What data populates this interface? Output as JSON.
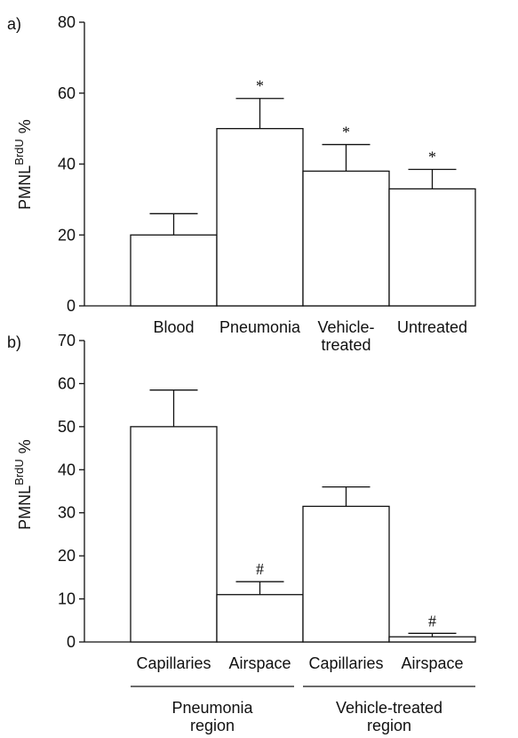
{
  "chart_data": [
    {
      "type": "bar",
      "panel": "a)",
      "ylabel": "PMNL",
      "ylabel_sup": "BrdU",
      "ylabel_unit": "%",
      "categories": [
        "Blood",
        "Pneumonia",
        "Vehicle-\ntreated",
        "Untreated"
      ],
      "values": [
        20,
        50,
        38,
        33
      ],
      "errors": [
        6,
        8.5,
        7.5,
        5.5
      ],
      "markers": [
        null,
        "*",
        "*",
        "*"
      ],
      "color": "#ffffff",
      "ylim": [
        0,
        80
      ],
      "yticks": [
        0,
        20,
        40,
        60,
        80
      ]
    },
    {
      "type": "bar",
      "panel": "b)",
      "ylabel": "PMNL",
      "ylabel_sup": "BrdU",
      "ylabel_unit": "%",
      "categories": [
        "Capillaries",
        "Airspace",
        "Capillaries",
        "Airspace"
      ],
      "values": [
        50,
        11,
        31.5,
        1.2
      ],
      "errors": [
        8.5,
        3,
        4.5,
        0.8
      ],
      "markers": [
        null,
        "#",
        null,
        "#"
      ],
      "color": "#ffffff",
      "groups": [
        "Pneumonia\nregion",
        "Vehicle-treated\nregion"
      ],
      "ylim": [
        0,
        70
      ],
      "yticks": [
        0,
        10,
        20,
        30,
        40,
        50,
        60,
        70
      ]
    }
  ]
}
